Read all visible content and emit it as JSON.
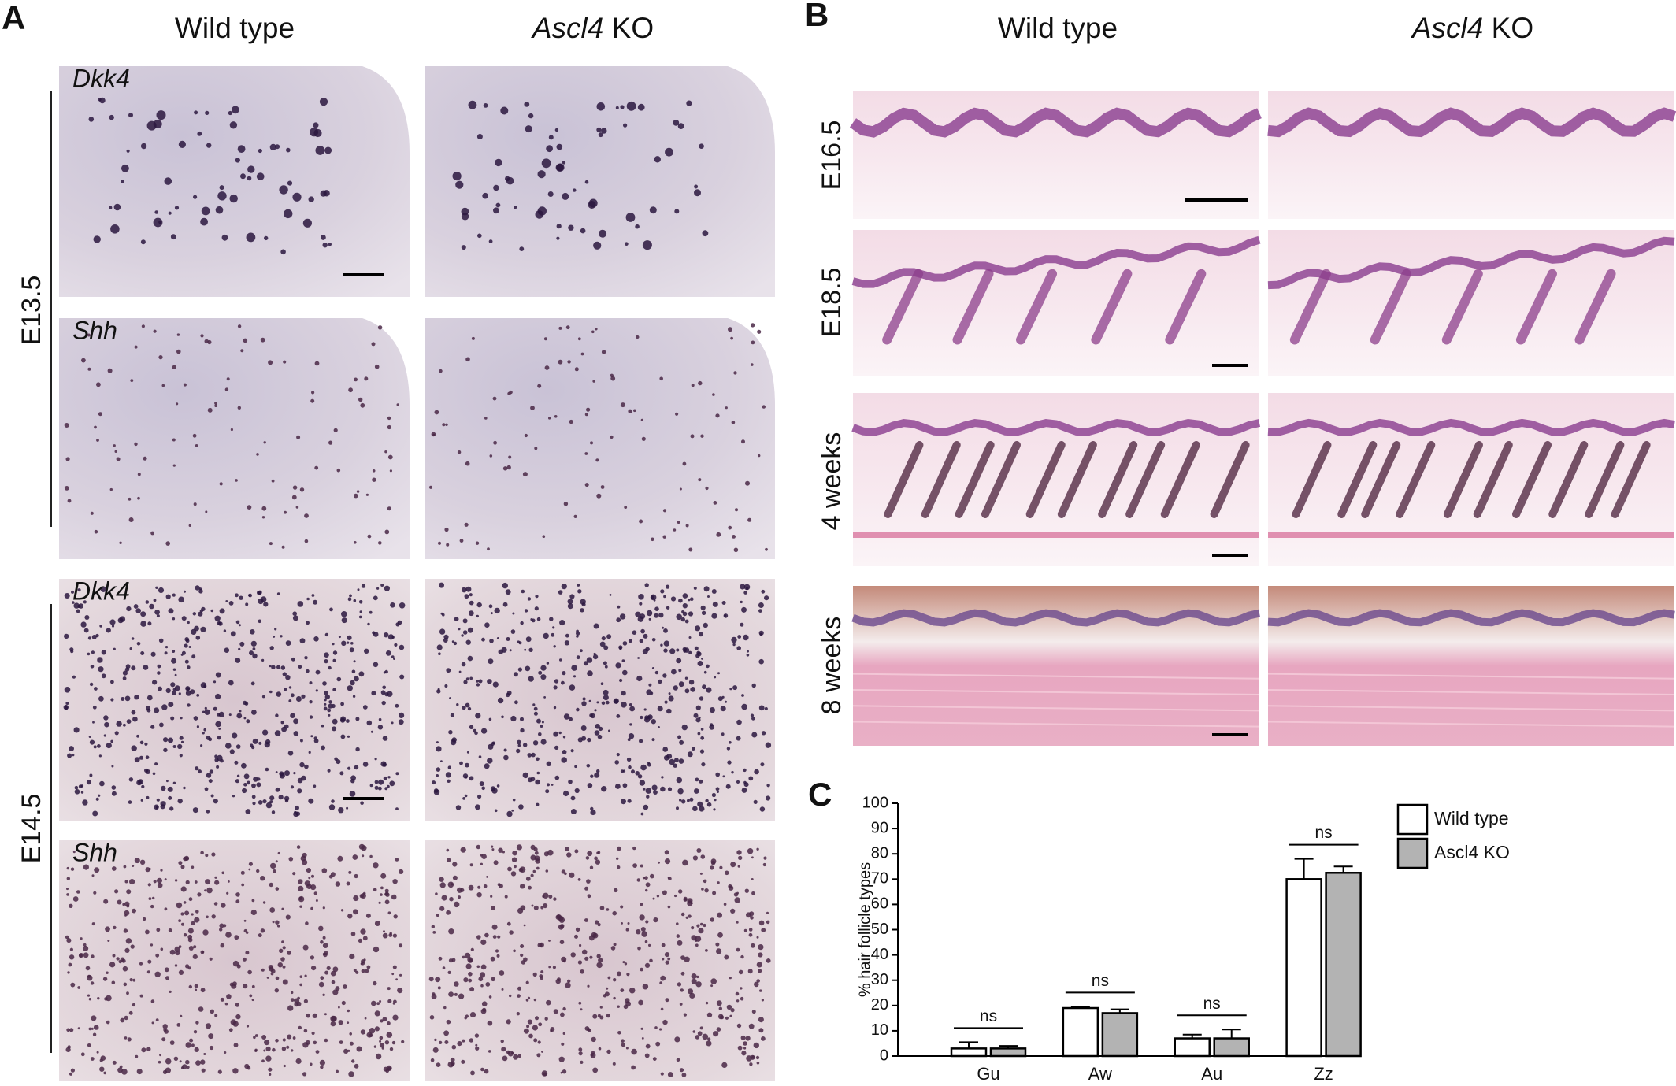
{
  "panel_a": {
    "label": "A",
    "columns": [
      {
        "text": "Wild type"
      },
      {
        "italic": "Ascl4",
        "text": "KO"
      }
    ],
    "stages": [
      "E13.5",
      "E14.5"
    ],
    "rows": [
      "Dkk4",
      "Shh",
      "Dkk4",
      "Shh"
    ]
  },
  "panel_b": {
    "label": "B",
    "columns": [
      {
        "text": "Wild type"
      },
      {
        "italic": "Ascl4",
        "text": "KO"
      }
    ],
    "rows": [
      "E16.5",
      "E18.5",
      "4 weeks",
      "8 weeks"
    ]
  },
  "chart_data": {
    "type": "bar",
    "label": "C",
    "y_label": "% hair follicle types",
    "categories": [
      "Gu",
      "Aw",
      "Au",
      "Zz"
    ],
    "series": [
      {
        "name": "Wild type",
        "color": "#ffffff",
        "values": [
          3,
          19,
          7,
          70
        ],
        "errors": [
          2.5,
          0.5,
          1.5,
          8
        ]
      },
      {
        "name": "Ascl4 KO",
        "color": "#b3b3b3",
        "values": [
          3,
          17,
          7,
          72.5
        ],
        "errors": [
          1,
          1.5,
          3.5,
          2.5
        ]
      }
    ],
    "annotations": [
      "ns",
      "ns",
      "ns",
      "ns"
    ],
    "ylim": [
      0,
      100
    ],
    "yticks": [
      0,
      10,
      20,
      30,
      40,
      50,
      60,
      70,
      80,
      90,
      100
    ],
    "legend": "upper right"
  }
}
